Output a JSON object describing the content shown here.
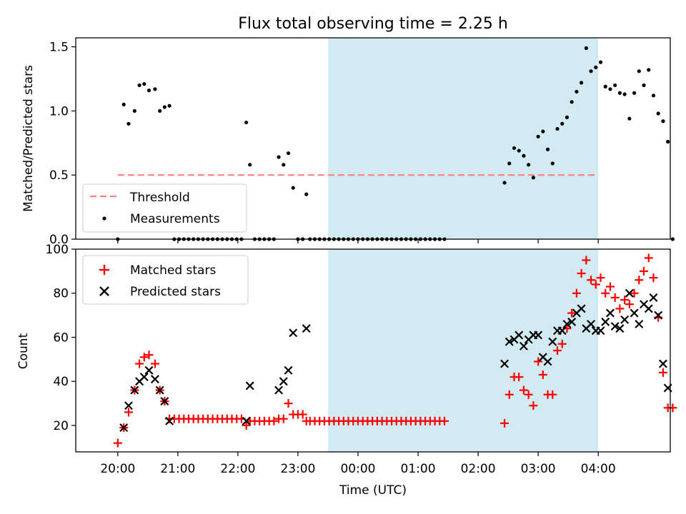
{
  "figure": {
    "title": "Flux total observing time = 2.25 h",
    "xlabel": "Time (UTC)",
    "colors": {
      "shade": "#add8e6",
      "threshold": "#ff7f7f",
      "matched": "#ff0000",
      "predicted": "#000000",
      "measurement": "#000000"
    }
  },
  "chart_data": [
    {
      "type": "scatter",
      "panel": "top",
      "title": "Flux total observing time = 2.25 h",
      "ylabel": "Matched/Predicted stars",
      "xlabel": "",
      "xlim": [
        -0.35,
        4.6
      ],
      "ylim": [
        0,
        1.57
      ],
      "yticks": [
        0.0,
        0.5,
        1.0,
        1.5
      ],
      "ytick_labels": [
        "0.0",
        "0.5",
        "1.0",
        "1.5"
      ],
      "shaded_span": [
        1.75,
        4.0
      ],
      "legend": {
        "position": "lower-left",
        "entries": [
          "Threshold",
          "Measurements"
        ]
      },
      "threshold": {
        "name": "Threshold",
        "y": 0.5,
        "x": [
          0.0,
          4.0
        ],
        "style": "dashed"
      },
      "series": [
        {
          "name": "Measurements",
          "marker": "dot",
          "points": [
            [
              0.0,
              0.0
            ],
            [
              0.05,
              1.05
            ],
            [
              0.09,
              0.9
            ],
            [
              0.14,
              1.0
            ],
            [
              0.18,
              1.2
            ],
            [
              0.22,
              1.21
            ],
            [
              0.26,
              1.16
            ],
            [
              0.31,
              1.17
            ],
            [
              0.35,
              1.0
            ],
            [
              0.39,
              1.03
            ],
            [
              0.43,
              1.04
            ],
            [
              0.47,
              0.0
            ],
            [
              0.51,
              0.0
            ],
            [
              0.55,
              0.0
            ],
            [
              0.59,
              0.0
            ],
            [
              0.63,
              0.0
            ],
            [
              0.67,
              0.0
            ],
            [
              0.71,
              0.0
            ],
            [
              0.75,
              0.0
            ],
            [
              0.79,
              0.0
            ],
            [
              0.83,
              0.0
            ],
            [
              0.87,
              0.0
            ],
            [
              0.91,
              0.0
            ],
            [
              0.95,
              0.0
            ],
            [
              0.99,
              0.0
            ],
            [
              1.03,
              0.0
            ],
            [
              1.07,
              0.91
            ],
            [
              1.1,
              0.58
            ],
            [
              1.14,
              0.0
            ],
            [
              1.18,
              0.0
            ],
            [
              1.22,
              0.0
            ],
            [
              1.26,
              0.0
            ],
            [
              1.3,
              0.0
            ],
            [
              1.34,
              0.64
            ],
            [
              1.38,
              0.58
            ],
            [
              1.42,
              0.67
            ],
            [
              1.46,
              0.4
            ],
            [
              1.5,
              0.0
            ],
            [
              1.54,
              0.0
            ],
            [
              1.57,
              0.35
            ],
            [
              1.6,
              0.0
            ],
            [
              1.64,
              0.0
            ],
            [
              1.68,
              0.0
            ],
            [
              1.72,
              0.0
            ],
            [
              1.76,
              0.0
            ],
            [
              1.8,
              0.0
            ],
            [
              1.84,
              0.0
            ],
            [
              1.88,
              0.0
            ],
            [
              1.92,
              0.0
            ],
            [
              1.96,
              0.0
            ],
            [
              2.0,
              0.0
            ],
            [
              2.04,
              0.0
            ],
            [
              2.08,
              0.0
            ],
            [
              2.12,
              0.0
            ],
            [
              2.16,
              0.0
            ],
            [
              2.2,
              0.0
            ],
            [
              2.24,
              0.0
            ],
            [
              2.28,
              0.0
            ],
            [
              2.32,
              0.0
            ],
            [
              2.36,
              0.0
            ],
            [
              2.4,
              0.0
            ],
            [
              2.44,
              0.0
            ],
            [
              2.48,
              0.0
            ],
            [
              2.52,
              0.0
            ],
            [
              2.56,
              0.0
            ],
            [
              2.6,
              0.0
            ],
            [
              2.64,
              0.0
            ],
            [
              2.68,
              0.0
            ],
            [
              2.72,
              0.0
            ],
            [
              3.22,
              0.44
            ],
            [
              3.26,
              0.59
            ],
            [
              3.3,
              0.71
            ],
            [
              3.34,
              0.69
            ],
            [
              3.38,
              0.65
            ],
            [
              3.42,
              0.58
            ],
            [
              3.46,
              0.48
            ],
            [
              3.5,
              0.8
            ],
            [
              3.54,
              0.84
            ],
            [
              3.58,
              0.7
            ],
            [
              3.62,
              0.59
            ],
            [
              3.66,
              0.86
            ],
            [
              3.7,
              0.9
            ],
            [
              3.74,
              0.95
            ],
            [
              3.78,
              1.07
            ],
            [
              3.82,
              1.15
            ],
            [
              3.86,
              1.22
            ],
            [
              3.9,
              1.49
            ],
            [
              3.94,
              1.31
            ],
            [
              3.98,
              1.34
            ],
            [
              4.02,
              1.38
            ],
            [
              4.06,
              1.19
            ],
            [
              4.1,
              1.17
            ],
            [
              4.14,
              1.2
            ],
            [
              4.18,
              1.14
            ],
            [
              4.22,
              1.13
            ],
            [
              4.26,
              0.94
            ],
            [
              4.3,
              1.14
            ],
            [
              4.34,
              1.31
            ],
            [
              4.38,
              1.2
            ],
            [
              4.42,
              1.32
            ],
            [
              4.46,
              1.12
            ],
            [
              4.5,
              0.98
            ],
            [
              4.54,
              0.92
            ],
            [
              4.58,
              0.76
            ],
            [
              4.62,
              0.0
            ]
          ]
        }
      ]
    },
    {
      "type": "scatter",
      "panel": "bottom",
      "ylabel": "Count",
      "xlabel": "Time (UTC)",
      "xlim": [
        -0.35,
        4.6
      ],
      "ylim": [
        8,
        100
      ],
      "yticks": [
        20,
        40,
        60,
        80,
        100
      ],
      "ytick_labels": [
        "20",
        "40",
        "60",
        "80",
        "100"
      ],
      "xticks": [
        0,
        0.5,
        1.0,
        1.5,
        2.0,
        2.5,
        3.0,
        3.5,
        4.0
      ],
      "xtick_labels": [
        "20:00",
        "21:00",
        "22:00",
        "23:00",
        "00:00",
        "01:00",
        "02:00",
        "03:00",
        "04:00"
      ],
      "shaded_span": [
        1.75,
        4.0
      ],
      "legend": {
        "position": "upper-left",
        "entries": [
          "Matched stars",
          "Predicted stars"
        ]
      },
      "series": [
        {
          "name": "Matched stars",
          "marker": "plus",
          "points": [
            [
              0.0,
              12
            ],
            [
              0.05,
              19
            ],
            [
              0.09,
              26
            ],
            [
              0.14,
              36
            ],
            [
              0.18,
              48
            ],
            [
              0.22,
              51
            ],
            [
              0.26,
              52
            ],
            [
              0.31,
              48
            ],
            [
              0.35,
              36
            ],
            [
              0.39,
              31
            ],
            [
              0.43,
              23
            ],
            [
              0.47,
              23
            ],
            [
              0.51,
              23
            ],
            [
              0.55,
              23
            ],
            [
              0.59,
              23
            ],
            [
              0.63,
              23
            ],
            [
              0.67,
              23
            ],
            [
              0.71,
              23
            ],
            [
              0.75,
              23
            ],
            [
              0.79,
              23
            ],
            [
              0.83,
              23
            ],
            [
              0.87,
              23
            ],
            [
              0.91,
              23
            ],
            [
              0.95,
              23
            ],
            [
              0.99,
              23
            ],
            [
              1.03,
              23
            ],
            [
              1.07,
              20
            ],
            [
              1.1,
              22
            ],
            [
              1.14,
              22
            ],
            [
              1.18,
              22
            ],
            [
              1.22,
              22
            ],
            [
              1.26,
              22
            ],
            [
              1.3,
              22
            ],
            [
              1.34,
              23
            ],
            [
              1.38,
              23
            ],
            [
              1.42,
              30
            ],
            [
              1.46,
              25
            ],
            [
              1.5,
              25
            ],
            [
              1.54,
              25
            ],
            [
              1.57,
              22
            ],
            [
              1.6,
              22
            ],
            [
              1.64,
              22
            ],
            [
              1.68,
              22
            ],
            [
              1.72,
              22
            ],
            [
              1.76,
              22
            ],
            [
              1.8,
              22
            ],
            [
              1.84,
              22
            ],
            [
              1.88,
              22
            ],
            [
              1.92,
              22
            ],
            [
              1.96,
              22
            ],
            [
              2.0,
              22
            ],
            [
              2.04,
              22
            ],
            [
              2.08,
              22
            ],
            [
              2.12,
              22
            ],
            [
              2.16,
              22
            ],
            [
              2.2,
              22
            ],
            [
              2.24,
              22
            ],
            [
              2.28,
              22
            ],
            [
              2.32,
              22
            ],
            [
              2.36,
              22
            ],
            [
              2.4,
              22
            ],
            [
              2.44,
              22
            ],
            [
              2.48,
              22
            ],
            [
              2.52,
              22
            ],
            [
              2.56,
              22
            ],
            [
              2.6,
              22
            ],
            [
              2.64,
              22
            ],
            [
              2.68,
              22
            ],
            [
              2.72,
              22
            ],
            [
              3.22,
              21
            ],
            [
              3.26,
              34
            ],
            [
              3.3,
              42
            ],
            [
              3.34,
              42
            ],
            [
              3.38,
              36
            ],
            [
              3.42,
              34
            ],
            [
              3.46,
              29
            ],
            [
              3.5,
              49
            ],
            [
              3.54,
              43
            ],
            [
              3.58,
              34
            ],
            [
              3.62,
              34
            ],
            [
              3.66,
              54
            ],
            [
              3.7,
              57
            ],
            [
              3.74,
              64
            ],
            [
              3.78,
              71
            ],
            [
              3.82,
              80
            ],
            [
              3.86,
              89
            ],
            [
              3.9,
              95
            ],
            [
              3.94,
              86
            ],
            [
              3.98,
              84
            ],
            [
              4.02,
              87
            ],
            [
              4.06,
              80
            ],
            [
              4.1,
              83
            ],
            [
              4.14,
              78
            ],
            [
              4.18,
              73
            ],
            [
              4.22,
              77
            ],
            [
              4.26,
              75
            ],
            [
              4.3,
              80
            ],
            [
              4.34,
              86
            ],
            [
              4.38,
              90
            ],
            [
              4.42,
              96
            ],
            [
              4.46,
              87
            ],
            [
              4.5,
              69
            ],
            [
              4.54,
              44
            ],
            [
              4.58,
              28
            ],
            [
              4.62,
              28
            ]
          ]
        },
        {
          "name": "Predicted stars",
          "marker": "x",
          "points": [
            [
              0.05,
              19
            ],
            [
              0.09,
              29
            ],
            [
              0.14,
              36
            ],
            [
              0.18,
              40
            ],
            [
              0.22,
              42
            ],
            [
              0.26,
              45
            ],
            [
              0.31,
              41
            ],
            [
              0.35,
              36
            ],
            [
              0.39,
              31
            ],
            [
              0.43,
              22
            ],
            [
              1.07,
              22
            ],
            [
              1.1,
              38
            ],
            [
              1.34,
              36
            ],
            [
              1.38,
              40
            ],
            [
              1.42,
              45
            ],
            [
              1.46,
              62
            ],
            [
              1.57,
              64
            ],
            [
              3.22,
              48
            ],
            [
              3.26,
              58
            ],
            [
              3.3,
              59
            ],
            [
              3.34,
              61
            ],
            [
              3.38,
              56
            ],
            [
              3.42,
              59
            ],
            [
              3.46,
              61
            ],
            [
              3.5,
              61
            ],
            [
              3.54,
              51
            ],
            [
              3.58,
              49
            ],
            [
              3.62,
              58
            ],
            [
              3.66,
              63
            ],
            [
              3.7,
              63
            ],
            [
              3.74,
              66
            ],
            [
              3.78,
              67
            ],
            [
              3.82,
              71
            ],
            [
              3.86,
              73
            ],
            [
              3.9,
              64
            ],
            [
              3.94,
              66
            ],
            [
              3.98,
              63
            ],
            [
              4.02,
              63
            ],
            [
              4.06,
              67
            ],
            [
              4.1,
              71
            ],
            [
              4.14,
              65
            ],
            [
              4.18,
              64
            ],
            [
              4.22,
              68
            ],
            [
              4.26,
              80
            ],
            [
              4.3,
              71
            ],
            [
              4.34,
              66
            ],
            [
              4.38,
              75
            ],
            [
              4.42,
              73
            ],
            [
              4.46,
              78
            ],
            [
              4.5,
              70
            ],
            [
              4.54,
              48
            ],
            [
              4.58,
              37
            ]
          ]
        }
      ]
    }
  ]
}
